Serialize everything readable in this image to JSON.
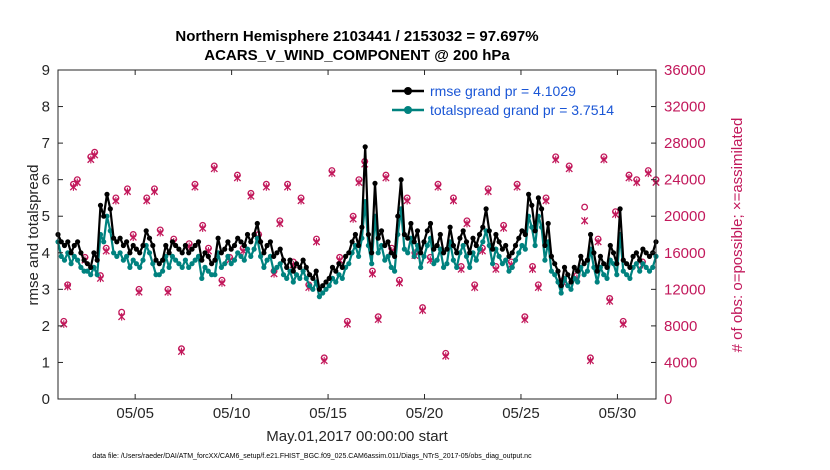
{
  "chart_data": {
    "type": "line",
    "title": "Northern Hemisphere 2103441 / 2153032 = 97.697%",
    "subtitle": "ACARS_V_WIND_COMPONENT @ 200 hPa",
    "xlabel": "May.01,2017 00:00:00 start",
    "ylabel": "rmse and totalspread",
    "ylabel_right": "# of obs: o=possible; ×=assimilated",
    "xlim": [
      1,
      32
    ],
    "ylim": [
      0,
      9
    ],
    "ylim_right": [
      0,
      36000
    ],
    "x_ticks": [
      5,
      10,
      15,
      20,
      25,
      30
    ],
    "x_tick_labels": [
      "05/05",
      "05/10",
      "05/15",
      "05/20",
      "05/25",
      "05/30"
    ],
    "y_ticks": [
      0,
      1,
      2,
      3,
      4,
      5,
      6,
      7,
      8,
      9
    ],
    "y_tick_labels": [
      "0",
      "1",
      "2",
      "3",
      "4",
      "5",
      "6",
      "7",
      "8",
      "9"
    ],
    "y_right_ticks": [
      0,
      4000,
      8000,
      12000,
      16000,
      20000,
      24000,
      28000,
      32000,
      36000
    ],
    "y_right_tick_labels": [
      "0",
      "4000",
      "8000",
      "12000",
      "16000",
      "20000",
      "24000",
      "28000",
      "32000",
      "36000"
    ],
    "legend_position": "top-right",
    "colors": {
      "rmse": "#000000",
      "totalspread": "#00827f",
      "obs": "#c2185b",
      "legend_text": "#1a56d6"
    },
    "series": [
      {
        "name": "rmse grand pr = 4.1029",
        "key": "rmse",
        "values": [
          4.5,
          4.3,
          4.2,
          4.3,
          4.0,
          4.2,
          4.3,
          4.0,
          3.8,
          3.7,
          3.6,
          4.0,
          3.8,
          5.3,
          5.0,
          5.6,
          5.2,
          4.4,
          4.3,
          4.4,
          4.2,
          4.3,
          4.0,
          4.2,
          4.1,
          4.0,
          4.2,
          4.6,
          4.4,
          4.2,
          3.8,
          3.7,
          3.8,
          4.2,
          4.0,
          4.3,
          4.2,
          4.1,
          4.0,
          4.2,
          4.0,
          4.1,
          4.2,
          4.3,
          3.8,
          4.0,
          3.9,
          3.7,
          3.8,
          4.4,
          4.0,
          4.1,
          4.3,
          4.1,
          4.2,
          4.4,
          4.3,
          4.2,
          4.5,
          4.3,
          4.5,
          4.8,
          4.3,
          4.0,
          4.2,
          4.3,
          3.9,
          4.0,
          4.1,
          3.8,
          3.6,
          3.8,
          3.5,
          3.7,
          3.6,
          3.8,
          3.6,
          3.4,
          3.3,
          3.5,
          3.0,
          3.1,
          3.2,
          3.3,
          3.6,
          3.5,
          3.7,
          3.6,
          3.9,
          4.0,
          4.3,
          4.5,
          4.2,
          4.7,
          6.9,
          4.5,
          4.0,
          5.9,
          4.4,
          4.6,
          4.2,
          4.3,
          4.0,
          3.9,
          5.0,
          6.0,
          4.5,
          4.4,
          4.8,
          4.3,
          4.6,
          4.0,
          4.3,
          4.6,
          4.8,
          4.1,
          4.2,
          4.5,
          4.0,
          4.1,
          4.7,
          4.2,
          4.0,
          4.4,
          4.6,
          4.3,
          4.0,
          4.4,
          4.2,
          4.5,
          4.7,
          5.2,
          4.6,
          4.1,
          4.5,
          4.3,
          4.1,
          4.2,
          3.9,
          4.0,
          4.2,
          4.4,
          4.6,
          4.5,
          5.6,
          5.3,
          4.6,
          5.5,
          5.2,
          4.2,
          4.8,
          3.9,
          3.7,
          3.5,
          3.1,
          3.6,
          3.4,
          3.2,
          3.6,
          3.5,
          3.9,
          3.7,
          3.8,
          4.5,
          4.0,
          3.5,
          3.9,
          3.7,
          3.6,
          4.2,
          4.0,
          3.7,
          5.2,
          3.8,
          3.7,
          3.6,
          3.9,
          4.0,
          3.8,
          4.1,
          4.0,
          3.9,
          4.0,
          4.3
        ]
      },
      {
        "name": "totalspread grand pr = 3.7514",
        "key": "totalspread",
        "values": [
          4.3,
          3.9,
          3.8,
          4.0,
          3.7,
          3.9,
          3.8,
          3.6,
          3.5,
          3.5,
          3.4,
          3.6,
          3.4,
          4.5,
          4.3,
          5.0,
          4.6,
          4.0,
          3.9,
          4.0,
          3.8,
          3.9,
          3.6,
          3.8,
          3.7,
          3.6,
          3.8,
          4.2,
          4.0,
          3.7,
          3.4,
          3.4,
          3.5,
          3.9,
          3.6,
          3.9,
          3.8,
          3.7,
          3.6,
          3.8,
          3.6,
          3.7,
          3.8,
          3.9,
          3.3,
          3.6,
          3.5,
          3.4,
          3.4,
          4.0,
          3.6,
          3.7,
          3.9,
          3.7,
          3.8,
          4.0,
          3.9,
          3.8,
          4.1,
          3.9,
          4.1,
          4.4,
          3.9,
          3.6,
          3.8,
          3.9,
          3.5,
          3.6,
          3.7,
          3.4,
          3.3,
          3.5,
          3.2,
          3.4,
          3.3,
          3.5,
          3.3,
          3.1,
          3.0,
          3.2,
          2.8,
          2.9,
          3.0,
          3.1,
          3.3,
          3.2,
          3.4,
          3.3,
          3.6,
          3.7,
          4.0,
          4.2,
          3.9,
          4.4,
          5.4,
          4.2,
          3.7,
          5.0,
          4.0,
          4.2,
          3.8,
          3.9,
          3.6,
          3.5,
          4.5,
          5.2,
          4.1,
          4.0,
          4.4,
          3.9,
          4.2,
          3.6,
          3.9,
          4.2,
          4.4,
          3.7,
          3.8,
          4.1,
          3.6,
          3.7,
          4.3,
          3.8,
          3.6,
          4.0,
          4.2,
          3.9,
          3.6,
          4.0,
          3.8,
          4.1,
          4.3,
          4.6,
          4.2,
          3.7,
          4.1,
          3.9,
          3.7,
          3.8,
          3.5,
          3.6,
          3.8,
          4.0,
          4.2,
          4.1,
          5.0,
          4.7,
          4.2,
          5.0,
          4.7,
          3.8,
          4.3,
          3.5,
          3.4,
          3.2,
          2.9,
          3.3,
          3.1,
          3.0,
          3.3,
          3.2,
          3.6,
          3.4,
          3.5,
          4.1,
          3.6,
          3.2,
          3.6,
          3.4,
          3.3,
          3.8,
          3.7,
          3.4,
          4.5,
          3.5,
          3.4,
          3.3,
          3.6,
          3.7,
          3.5,
          3.7,
          3.6,
          3.5,
          3.6,
          3.9
        ]
      }
    ],
    "obs_possible": [
      [
        1.3,
        8500
      ],
      [
        1.5,
        12500
      ],
      [
        1.8,
        23500
      ],
      [
        2.0,
        24000
      ],
      [
        2.4,
        15500
      ],
      [
        2.7,
        26500
      ],
      [
        2.9,
        27000
      ],
      [
        3.2,
        13500
      ],
      [
        3.5,
        16500
      ],
      [
        4.0,
        22000
      ],
      [
        4.3,
        9500
      ],
      [
        4.6,
        23000
      ],
      [
        4.9,
        18000
      ],
      [
        5.2,
        12000
      ],
      [
        5.6,
        22000
      ],
      [
        6.0,
        23000
      ],
      [
        6.3,
        18500
      ],
      [
        6.7,
        12000
      ],
      [
        7.0,
        17500
      ],
      [
        7.4,
        5500
      ],
      [
        7.8,
        17000
      ],
      [
        8.1,
        23500
      ],
      [
        8.5,
        19000
      ],
      [
        8.8,
        16500
      ],
      [
        9.1,
        25500
      ],
      [
        9.5,
        13000
      ],
      [
        9.9,
        15500
      ],
      [
        10.3,
        24500
      ],
      [
        10.6,
        16500
      ],
      [
        11.0,
        22500
      ],
      [
        11.4,
        18000
      ],
      [
        11.8,
        23500
      ],
      [
        12.2,
        14000
      ],
      [
        12.5,
        19500
      ],
      [
        12.9,
        23500
      ],
      [
        13.2,
        15000
      ],
      [
        13.6,
        22000
      ],
      [
        14.0,
        12500
      ],
      [
        14.4,
        17500
      ],
      [
        14.8,
        4500
      ],
      [
        15.2,
        25000
      ],
      [
        15.6,
        15500
      ],
      [
        16.0,
        8500
      ],
      [
        16.3,
        20000
      ],
      [
        16.6,
        24000
      ],
      [
        16.9,
        26000
      ],
      [
        17.3,
        14000
      ],
      [
        17.6,
        9000
      ],
      [
        18.0,
        24500
      ],
      [
        18.3,
        16500
      ],
      [
        18.7,
        13000
      ],
      [
        19.1,
        22000
      ],
      [
        19.5,
        16000
      ],
      [
        19.9,
        10000
      ],
      [
        20.3,
        15500
      ],
      [
        20.7,
        23500
      ],
      [
        21.1,
        5000
      ],
      [
        21.5,
        22000
      ],
      [
        21.9,
        14500
      ],
      [
        22.2,
        19500
      ],
      [
        22.6,
        12500
      ],
      [
        23.0,
        16500
      ],
      [
        23.3,
        23000
      ],
      [
        23.7,
        14500
      ],
      [
        24.1,
        19000
      ],
      [
        24.5,
        15000
      ],
      [
        24.8,
        23500
      ],
      [
        25.2,
        9000
      ],
      [
        25.6,
        14500
      ],
      [
        25.9,
        12500
      ],
      [
        26.3,
        22000
      ],
      [
        26.8,
        26500
      ],
      [
        27.2,
        13000
      ],
      [
        27.5,
        25500
      ],
      [
        27.9,
        13500
      ],
      [
        28.3,
        21000
      ],
      [
        28.6,
        4500
      ],
      [
        29.0,
        17500
      ],
      [
        29.3,
        26500
      ],
      [
        29.6,
        11000
      ],
      [
        29.9,
        20500
      ],
      [
        30.3,
        8500
      ],
      [
        30.6,
        24500
      ],
      [
        31.0,
        24000
      ],
      [
        31.3,
        15000
      ],
      [
        31.6,
        25000
      ],
      [
        32.0,
        24000
      ]
    ],
    "obs_assimilated": [
      [
        1.3,
        8200
      ],
      [
        1.5,
        12300
      ],
      [
        1.8,
        23200
      ],
      [
        2.0,
        23700
      ],
      [
        2.4,
        15200
      ],
      [
        2.7,
        26200
      ],
      [
        2.9,
        26700
      ],
      [
        3.2,
        13200
      ],
      [
        3.5,
        16200
      ],
      [
        4.0,
        21700
      ],
      [
        4.3,
        9000
      ],
      [
        4.6,
        22700
      ],
      [
        4.9,
        17700
      ],
      [
        5.2,
        11700
      ],
      [
        5.6,
        21700
      ],
      [
        6.0,
        22700
      ],
      [
        6.3,
        18200
      ],
      [
        6.7,
        11700
      ],
      [
        7.0,
        17200
      ],
      [
        7.4,
        5200
      ],
      [
        7.8,
        16700
      ],
      [
        8.1,
        23200
      ],
      [
        8.5,
        18700
      ],
      [
        8.8,
        16200
      ],
      [
        9.1,
        25200
      ],
      [
        9.5,
        12700
      ],
      [
        9.9,
        15200
      ],
      [
        10.3,
        24200
      ],
      [
        10.6,
        16200
      ],
      [
        11.0,
        22200
      ],
      [
        11.4,
        17700
      ],
      [
        11.8,
        23200
      ],
      [
        12.2,
        13700
      ],
      [
        12.5,
        19200
      ],
      [
        12.9,
        23200
      ],
      [
        13.2,
        14700
      ],
      [
        13.6,
        21700
      ],
      [
        14.0,
        12200
      ],
      [
        14.4,
        17200
      ],
      [
        14.8,
        4200
      ],
      [
        15.2,
        24700
      ],
      [
        15.6,
        15200
      ],
      [
        16.0,
        8200
      ],
      [
        16.3,
        19700
      ],
      [
        16.6,
        23700
      ],
      [
        16.9,
        25700
      ],
      [
        17.3,
        13700
      ],
      [
        17.6,
        8700
      ],
      [
        18.0,
        24200
      ],
      [
        18.3,
        16200
      ],
      [
        18.7,
        12700
      ],
      [
        19.1,
        21700
      ],
      [
        19.5,
        15700
      ],
      [
        19.9,
        9700
      ],
      [
        20.3,
        15200
      ],
      [
        20.7,
        23200
      ],
      [
        21.1,
        4700
      ],
      [
        21.5,
        21700
      ],
      [
        21.9,
        14200
      ],
      [
        22.2,
        19200
      ],
      [
        22.6,
        12200
      ],
      [
        23.0,
        16200
      ],
      [
        23.3,
        22700
      ],
      [
        23.7,
        14200
      ],
      [
        24.1,
        18700
      ],
      [
        24.5,
        14700
      ],
      [
        24.8,
        23200
      ],
      [
        25.2,
        8700
      ],
      [
        25.6,
        14200
      ],
      [
        25.9,
        12200
      ],
      [
        26.3,
        21700
      ],
      [
        26.8,
        26200
      ],
      [
        27.2,
        12700
      ],
      [
        27.5,
        25200
      ],
      [
        27.9,
        13200
      ],
      [
        28.3,
        19500
      ],
      [
        28.6,
        4200
      ],
      [
        29.0,
        17200
      ],
      [
        29.3,
        26200
      ],
      [
        29.6,
        10700
      ],
      [
        29.9,
        20200
      ],
      [
        30.3,
        8200
      ],
      [
        30.6,
        24200
      ],
      [
        31.0,
        23700
      ],
      [
        31.3,
        14700
      ],
      [
        31.6,
        24700
      ],
      [
        32.0,
        23700
      ]
    ],
    "footnote": "data file: /Users/raeder/DAI/ATM_forcXX/CAM6_setup/f.e21.FHIST_BGC.f09_025.CAM6assim.011/Diags_NTrS_2017-05/obs_diag_output.nc"
  }
}
